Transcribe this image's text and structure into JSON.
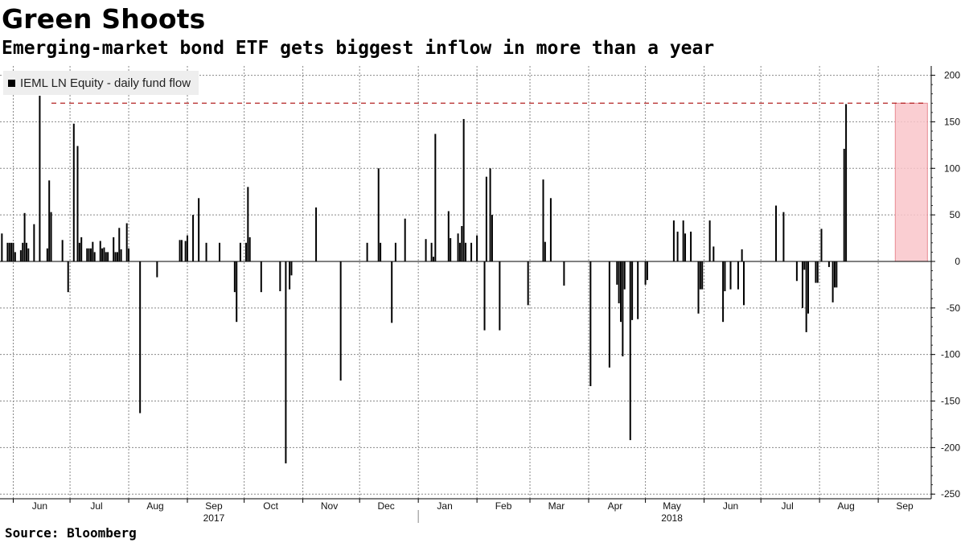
{
  "title": "Green Shoots",
  "subtitle": "Emerging-market bond ETF gets biggest inflow in more than a year",
  "source": "Source: Bloomberg",
  "colors": {
    "bar": "#000000",
    "reference_line": "#b22222",
    "highlight_fill": "#f9c6ca",
    "highlight_stroke": "#e88a92",
    "grid": "#888888"
  },
  "chart_data": {
    "type": "bar",
    "legend": {
      "placement": "top-left",
      "entries": [
        {
          "name": "IEML LN Equity - daily fund flow",
          "color": "#000000"
        }
      ]
    },
    "x_range": [
      "2017-05-26",
      "2018-09-28"
    ],
    "ylim": [
      -255,
      210
    ],
    "y_ticks": [
      200,
      150,
      100,
      50,
      0,
      -50,
      -100,
      -150,
      -200,
      -250
    ],
    "y_axis_side": "right",
    "grid": true,
    "month_ticks": [
      {
        "label": "Jun",
        "date": "2017-06-15"
      },
      {
        "label": "Jul",
        "date": "2017-07-15"
      },
      {
        "label": "Aug",
        "date": "2017-08-15"
      },
      {
        "label": "Sep",
        "date": "2017-09-15"
      },
      {
        "label": "Oct",
        "date": "2017-10-15"
      },
      {
        "label": "Nov",
        "date": "2017-11-15"
      },
      {
        "label": "Dec",
        "date": "2017-12-15"
      },
      {
        "label": "Jan",
        "date": "2018-01-15"
      },
      {
        "label": "Feb",
        "date": "2018-02-15"
      },
      {
        "label": "Mar",
        "date": "2018-03-15"
      },
      {
        "label": "Apr",
        "date": "2018-04-15"
      },
      {
        "label": "May",
        "date": "2018-05-15"
      },
      {
        "label": "Jun",
        "date": "2018-06-15"
      },
      {
        "label": "Jul",
        "date": "2018-07-15"
      },
      {
        "label": "Aug",
        "date": "2018-08-15"
      },
      {
        "label": "Sep",
        "date": "2018-09-15"
      }
    ],
    "year_labels": [
      {
        "label": "2017",
        "date": "2017-09-15"
      },
      {
        "label": "2018",
        "date": "2018-05-15"
      }
    ],
    "year_divider_date": "2018-01-01",
    "reference_line": {
      "value": 170,
      "style": "dashed"
    },
    "highlight": {
      "from": "2018-09-10",
      "to": "2018-09-27",
      "ymin": 0,
      "ymax": 170
    },
    "points": [
      [
        "2017-05-26",
        30
      ],
      [
        "2017-05-29",
        20
      ],
      [
        "2017-05-30",
        20
      ],
      [
        "2017-05-31",
        20
      ],
      [
        "2017-06-01",
        20
      ],
      [
        "2017-06-02",
        10
      ],
      [
        "2017-06-05",
        12
      ],
      [
        "2017-06-06",
        20
      ],
      [
        "2017-06-07",
        52
      ],
      [
        "2017-06-08",
        20
      ],
      [
        "2017-06-09",
        14
      ],
      [
        "2017-06-12",
        40
      ],
      [
        "2017-06-15",
        178
      ],
      [
        "2017-06-19",
        14
      ],
      [
        "2017-06-20",
        87
      ],
      [
        "2017-06-21",
        53
      ],
      [
        "2017-06-27",
        23
      ],
      [
        "2017-06-30",
        -33
      ],
      [
        "2017-07-03",
        148
      ],
      [
        "2017-07-05",
        124
      ],
      [
        "2017-07-06",
        20
      ],
      [
        "2017-07-07",
        26
      ],
      [
        "2017-07-10",
        14
      ],
      [
        "2017-07-11",
        14
      ],
      [
        "2017-07-12",
        14
      ],
      [
        "2017-07-13",
        21
      ],
      [
        "2017-07-14",
        10
      ],
      [
        "2017-07-17",
        22
      ],
      [
        "2017-07-18",
        14
      ],
      [
        "2017-07-19",
        15
      ],
      [
        "2017-07-20",
        10
      ],
      [
        "2017-07-21",
        10
      ],
      [
        "2017-07-24",
        26
      ],
      [
        "2017-07-25",
        10
      ],
      [
        "2017-07-26",
        10
      ],
      [
        "2017-07-27",
        36
      ],
      [
        "2017-07-28",
        13
      ],
      [
        "2017-07-31",
        41
      ],
      [
        "2017-08-01",
        14
      ],
      [
        "2017-08-07",
        -163
      ],
      [
        "2017-08-16",
        -17
      ],
      [
        "2017-08-28",
        23
      ],
      [
        "2017-08-29",
        23
      ],
      [
        "2017-08-31",
        22
      ],
      [
        "2017-09-01",
        28
      ],
      [
        "2017-09-04",
        50
      ],
      [
        "2017-09-07",
        68
      ],
      [
        "2017-09-11",
        20
      ],
      [
        "2017-09-18",
        20
      ],
      [
        "2017-09-26",
        -33
      ],
      [
        "2017-09-27",
        -65
      ],
      [
        "2017-09-29",
        20
      ],
      [
        "2017-10-02",
        20
      ],
      [
        "2017-10-03",
        80
      ],
      [
        "2017-10-04",
        26
      ],
      [
        "2017-10-10",
        -33
      ],
      [
        "2017-10-20",
        -32
      ],
      [
        "2017-10-23",
        -217
      ],
      [
        "2017-10-25",
        -30
      ],
      [
        "2017-10-26",
        -15
      ],
      [
        "2017-11-08",
        58
      ],
      [
        "2017-11-21",
        -128
      ],
      [
        "2017-12-05",
        20
      ],
      [
        "2017-12-11",
        100
      ],
      [
        "2017-12-12",
        20
      ],
      [
        "2017-12-18",
        -66
      ],
      [
        "2017-12-20",
        20
      ],
      [
        "2017-12-25",
        46
      ],
      [
        "2018-01-05",
        24
      ],
      [
        "2018-01-08",
        20
      ],
      [
        "2018-01-09",
        5
      ],
      [
        "2018-01-10",
        137
      ],
      [
        "2018-01-17",
        54
      ],
      [
        "2018-01-18",
        25
      ],
      [
        "2018-01-22",
        30
      ],
      [
        "2018-01-23",
        20
      ],
      [
        "2018-01-24",
        38
      ],
      [
        "2018-01-25",
        153
      ],
      [
        "2018-01-26",
        20
      ],
      [
        "2018-01-29",
        20
      ],
      [
        "2018-02-01",
        28
      ],
      [
        "2018-02-05",
        -74
      ],
      [
        "2018-02-06",
        91
      ],
      [
        "2018-02-08",
        100
      ],
      [
        "2018-02-09",
        50
      ],
      [
        "2018-02-13",
        -74
      ],
      [
        "2018-02-28",
        -47
      ],
      [
        "2018-03-08",
        88
      ],
      [
        "2018-03-09",
        21
      ],
      [
        "2018-03-12",
        68
      ],
      [
        "2018-03-19",
        -26
      ],
      [
        "2018-04-02",
        -134
      ],
      [
        "2018-04-12",
        -114
      ],
      [
        "2018-04-16",
        -25
      ],
      [
        "2018-04-17",
        -45
      ],
      [
        "2018-04-18",
        -65
      ],
      [
        "2018-04-19",
        -102
      ],
      [
        "2018-04-20",
        -30
      ],
      [
        "2018-04-23",
        -192
      ],
      [
        "2018-04-24",
        -63
      ],
      [
        "2018-04-27",
        -62
      ],
      [
        "2018-05-01",
        -25
      ],
      [
        "2018-05-02",
        -20
      ],
      [
        "2018-05-16",
        44
      ],
      [
        "2018-05-18",
        32
      ],
      [
        "2018-05-21",
        44
      ],
      [
        "2018-05-22",
        30
      ],
      [
        "2018-05-25",
        32
      ],
      [
        "2018-05-29",
        -56
      ],
      [
        "2018-05-30",
        -30
      ],
      [
        "2018-05-31",
        -30
      ],
      [
        "2018-06-04",
        44
      ],
      [
        "2018-06-06",
        16
      ],
      [
        "2018-06-11",
        -65
      ],
      [
        "2018-06-12",
        -32
      ],
      [
        "2018-06-15",
        -30
      ],
      [
        "2018-06-19",
        -30
      ],
      [
        "2018-06-21",
        13
      ],
      [
        "2018-06-22",
        -47
      ],
      [
        "2018-07-09",
        60
      ],
      [
        "2018-07-13",
        53
      ],
      [
        "2018-07-20",
        -21
      ],
      [
        "2018-07-23",
        -50
      ],
      [
        "2018-07-24",
        -9
      ],
      [
        "2018-07-25",
        -76
      ],
      [
        "2018-07-26",
        -56
      ],
      [
        "2018-07-30",
        -23
      ],
      [
        "2018-07-31",
        -23
      ],
      [
        "2018-08-02",
        35
      ],
      [
        "2018-08-06",
        -6
      ],
      [
        "2018-08-08",
        -44
      ],
      [
        "2018-08-09",
        -28
      ],
      [
        "2018-08-10",
        -28
      ],
      [
        "2018-08-14",
        121
      ],
      [
        "2018-08-15",
        169
      ]
    ]
  }
}
